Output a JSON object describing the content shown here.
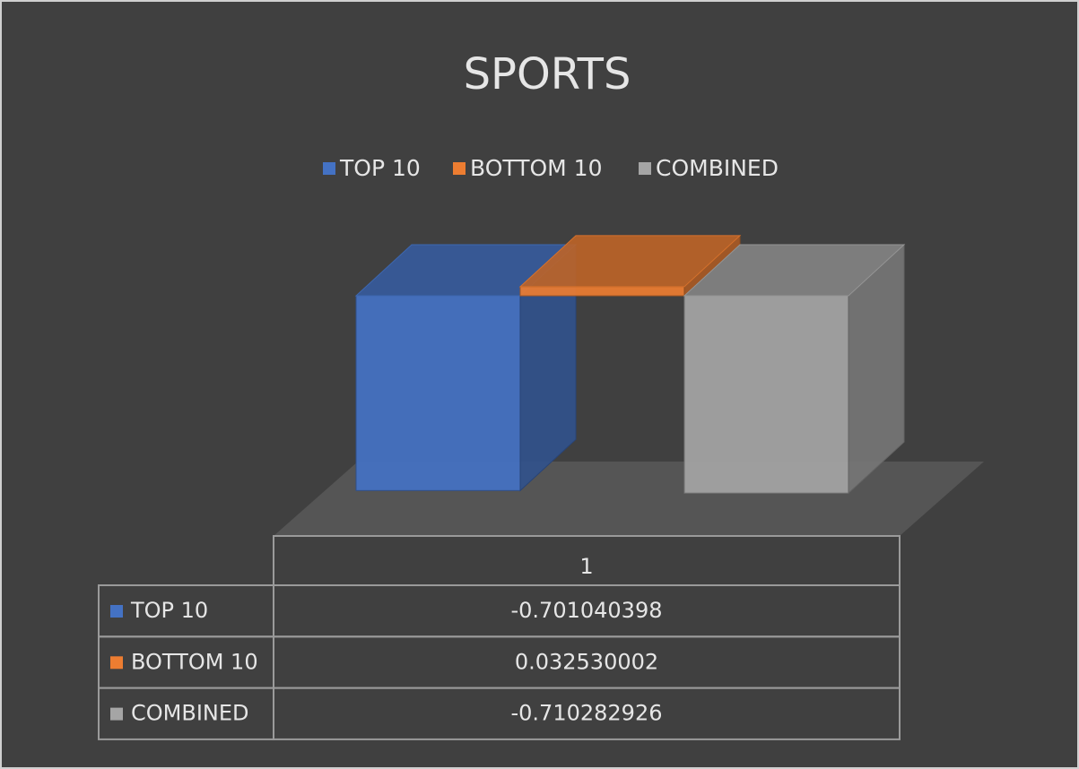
{
  "chart_data": {
    "type": "bar3d",
    "title": "SPORTS",
    "categories": [
      "1"
    ],
    "series": [
      {
        "name": "TOP 10",
        "color": "#4472c4",
        "values": [
          -0.701040398
        ]
      },
      {
        "name": "BOTTOM 10",
        "color": "#ed7d31",
        "values": [
          0.032530002
        ]
      },
      {
        "name": "COMBINED",
        "color": "#a5a5a5",
        "values": [
          -0.710282926
        ]
      }
    ],
    "legend": "top",
    "data_table": true
  }
}
